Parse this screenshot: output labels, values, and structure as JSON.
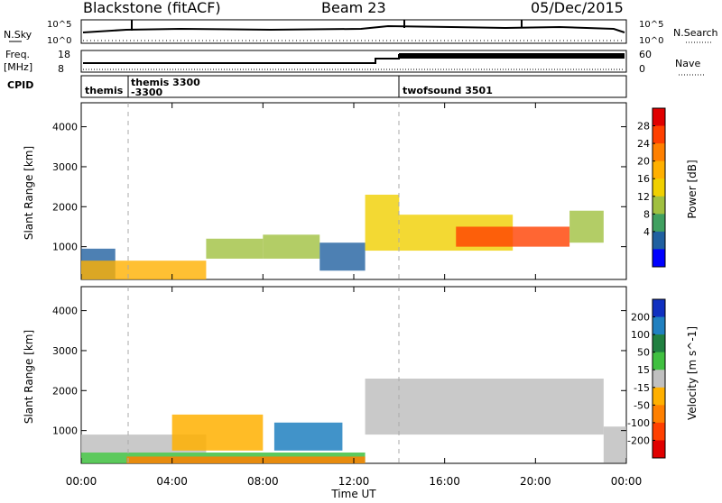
{
  "header": {
    "station": "Blackstone (fitACF)",
    "beam": "Beam 23",
    "date": "05/Dec/2015"
  },
  "top_panels": {
    "nsky_label": "N.Sky",
    "nsky_ticks": [
      "10^5",
      "10^0"
    ],
    "nsearch_label": "N.Search",
    "nsearch_ticks": [
      "10^5",
      "10^0"
    ],
    "freq_label": "Freq.",
    "freq_unit": "[MHz]",
    "freq_ticks": [
      "18",
      "8"
    ],
    "nave_label": "Nave",
    "nave_ticks": [
      "60",
      "0"
    ],
    "cpid_label": "CPID",
    "cpid_segments": [
      {
        "name": "themis",
        "start_hour": 0.0,
        "line2": ""
      },
      {
        "name": "themis 3300",
        "start_hour": 2.0,
        "line2": "-3300"
      },
      {
        "name": "twofsound 3501",
        "start_hour": 14.0,
        "line2": ""
      }
    ]
  },
  "power_panel": {
    "ylabel": "Slant Range [km]",
    "colorbar_label": "Power [dB]",
    "colorbar_ticks": [
      "28",
      "24",
      "20",
      "16",
      "12",
      "8",
      "4"
    ],
    "colorbar_colors": [
      "#e00000",
      "#ff4000",
      "#ff8000",
      "#ffb000",
      "#f0d000",
      "#a0c040",
      "#40a060",
      "#2060a0",
      "#0000ff"
    ]
  },
  "velocity_panel": {
    "ylabel": "Slant Range [km]",
    "colorbar_label": "Velocity [m s^-1]",
    "colorbar_ticks": [
      "200",
      "100",
      "50",
      "15",
      "-15",
      "-50",
      "-100",
      "-200"
    ],
    "colorbar_colors": [
      "#1030c0",
      "#2080c0",
      "#208040",
      "#40c040",
      "#c0c0c0",
      "#ffb000",
      "#ff8000",
      "#ff4000",
      "#e00000"
    ]
  },
  "axes": {
    "y_ticks": [
      "1000",
      "2000",
      "3000",
      "4000"
    ],
    "x_ticks": [
      "00:00",
      "04:00",
      "08:00",
      "12:00",
      "16:00",
      "20:00",
      "00:00"
    ],
    "xlabel": "Time UT"
  },
  "chart_data": {
    "type": "heatmap",
    "x_range_hours": [
      0,
      24
    ],
    "y_range_km": [
      180,
      4600
    ],
    "power_regions": [
      {
        "t0": 0.0,
        "t1": 1.5,
        "r0": 180,
        "r1": 950,
        "value_db": 8
      },
      {
        "t0": 0.0,
        "t1": 5.5,
        "r0": 180,
        "r1": 650,
        "value_db": 20
      },
      {
        "t0": 5.5,
        "t1": 8.0,
        "r0": 700,
        "r1": 1200,
        "value_db": 12
      },
      {
        "t0": 8.0,
        "t1": 10.5,
        "r0": 700,
        "r1": 1300,
        "value_db": 12
      },
      {
        "t0": 10.5,
        "t1": 12.5,
        "r0": 400,
        "r1": 1100,
        "value_db": 8
      },
      {
        "t0": 12.5,
        "t1": 14.0,
        "r0": 900,
        "r1": 2300,
        "value_db": 16
      },
      {
        "t0": 14.0,
        "t1": 19.0,
        "r0": 900,
        "r1": 1800,
        "value_db": 16
      },
      {
        "t0": 16.5,
        "t1": 21.5,
        "r0": 1000,
        "r1": 1500,
        "value_db": 22
      },
      {
        "t0": 21.5,
        "t1": 23.0,
        "r0": 1100,
        "r1": 1900,
        "value_db": 12
      }
    ],
    "velocity_regions": [
      {
        "t0": 0.0,
        "t1": 5.5,
        "r0": 450,
        "r1": 900,
        "value_ms": 0
      },
      {
        "t0": 0.0,
        "t1": 12.5,
        "r0": 180,
        "r1": 450,
        "value_ms": 30
      },
      {
        "t0": 2.0,
        "t1": 12.5,
        "r0": 180,
        "r1": 350,
        "value_ms": -60
      },
      {
        "t0": 4.0,
        "t1": 8.0,
        "r0": 500,
        "r1": 1400,
        "value_ms": -50
      },
      {
        "t0": 8.5,
        "t1": 11.5,
        "r0": 500,
        "r1": 1200,
        "value_ms": 75
      },
      {
        "t0": 12.5,
        "t1": 23.0,
        "r0": 900,
        "r1": 2300,
        "value_ms": 0
      },
      {
        "t0": 23.0,
        "t1": 24.0,
        "r0": 200,
        "r1": 1100,
        "value_ms": 0
      }
    ]
  }
}
